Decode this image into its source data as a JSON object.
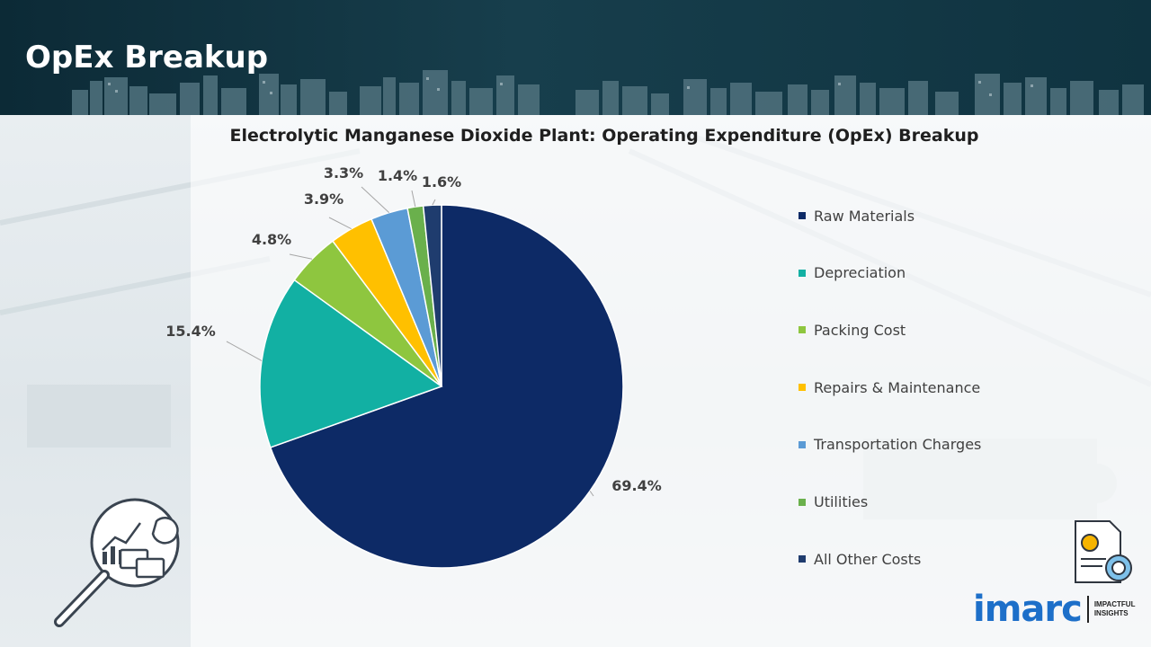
{
  "header": {
    "title": "OpEx Breakup"
  },
  "chart_data": {
    "type": "pie",
    "title": "Electrolytic Manganese Dioxide Plant: Operating Expenditure (OpEx) Breakup",
    "categories": [
      "Raw Materials",
      "Depreciation",
      "Packing Cost",
      "Repairs & Maintenance",
      "Transportation Charges",
      "Utilities",
      "All Other Costs"
    ],
    "values": [
      69.4,
      15.4,
      4.8,
      3.9,
      3.3,
      1.4,
      1.6
    ],
    "labels": [
      "69.4%",
      "15.4%",
      "4.8%",
      "3.9%",
      "3.3%",
      "1.4%",
      "1.6%"
    ],
    "colors": [
      "#0d2a66",
      "#12b0a3",
      "#8ec63f",
      "#ffc000",
      "#5b9bd5",
      "#6ab04c",
      "#1f3c6e"
    ],
    "legend_position": "right"
  },
  "icons": {
    "left": "analytics-magnifier-icon",
    "right": "invoice-dollar-icon"
  },
  "logo": {
    "name": "imarc",
    "tagline_1": "IMPACTFUL",
    "tagline_2": "INSIGHTS"
  }
}
